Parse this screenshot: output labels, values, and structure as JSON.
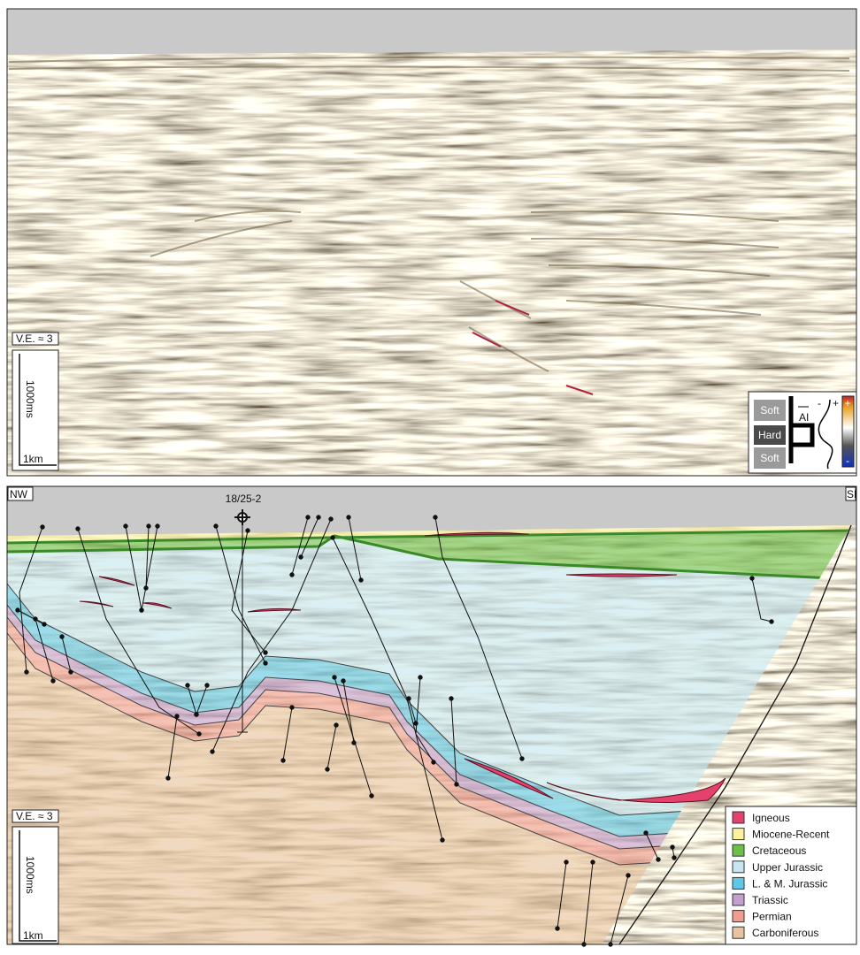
{
  "top_panel": {
    "ve_label": "V.E. ≈ 3",
    "scale_time": "1000ms",
    "scale_distance": "1km",
    "polarity_key": {
      "rows": [
        "Soft",
        "Hard",
        "Soft"
      ],
      "ai_label": "AI",
      "wavelet_minus": "-",
      "wavelet_plus": "+",
      "colorbar_plus": "+",
      "colorbar_minus": "-"
    }
  },
  "bottom_panel": {
    "left_label": "NW",
    "right_label": "SE",
    "well": "18/25-2",
    "ve_label": "V.E. ≈ 3",
    "scale_time": "1000ms",
    "scale_distance": "1km",
    "legend": [
      {
        "label": "Igneous",
        "color": "#e5416d"
      },
      {
        "label": "Miocene-Recent",
        "color": "#fbf29b"
      },
      {
        "label": "Cretaceous",
        "color": "#6cbf49"
      },
      {
        "label": "Upper Jurassic",
        "color": "#c6e7f1"
      },
      {
        "label": "L. & M. Jurassic",
        "color": "#5fc8e6"
      },
      {
        "label": "Triassic",
        "color": "#c59fcd"
      },
      {
        "label": "Permian",
        "color": "#f09c8e"
      },
      {
        "label": "Carboniferous",
        "color": "#e8c39e"
      }
    ]
  }
}
